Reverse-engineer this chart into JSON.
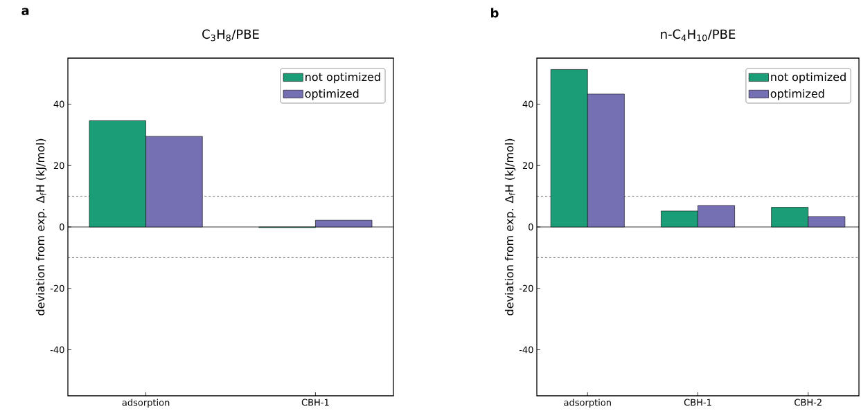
{
  "chart_data": [
    {
      "type": "bar",
      "title": "C$_{3}$H$_{8}$/PBE",
      "ylabel": "deviation from exp. Δ$_{f}$H (kJ/mol)",
      "annotations": [
        "a"
      ],
      "categories": [
        "adsorption",
        "CBH-1"
      ],
      "series": [
        {
          "name": "not optimized",
          "color": "#1b9e77",
          "values": [
            34.6,
            -0.2
          ]
        },
        {
          "name": "optimized",
          "color": "#7570b3",
          "values": [
            29.5,
            2.2
          ]
        }
      ],
      "ylim": [
        -55,
        55
      ],
      "yticks": [
        -40,
        -20,
        0,
        20,
        40
      ],
      "ref_lines": [
        {
          "axis": "y",
          "value": 10,
          "line_style": "dashed"
        },
        {
          "axis": "y",
          "value": -10,
          "line_style": "dashed"
        }
      ],
      "legend": "top right"
    },
    {
      "type": "bar",
      "title": "n-C$_{4}$H$_{10}$/PBE",
      "ylabel": "deviation from exp. Δ$_{f}$H (kJ/mol)",
      "annotations": [
        "b"
      ],
      "categories": [
        "adsorption",
        "CBH-1",
        "CBH-2"
      ],
      "series": [
        {
          "name": "not optimized",
          "color": "#1b9e77",
          "values": [
            51.3,
            5.2,
            6.4
          ]
        },
        {
          "name": "optimized",
          "color": "#7570b3",
          "values": [
            43.3,
            7.0,
            3.4
          ]
        }
      ],
      "ylim": [
        -55,
        55
      ],
      "yticks": [
        -40,
        -20,
        0,
        20,
        40
      ],
      "ref_lines": [
        {
          "axis": "y",
          "value": 10,
          "line_style": "dashed"
        },
        {
          "axis": "y",
          "value": -10,
          "line_style": "dashed"
        }
      ],
      "legend": "top right"
    }
  ]
}
